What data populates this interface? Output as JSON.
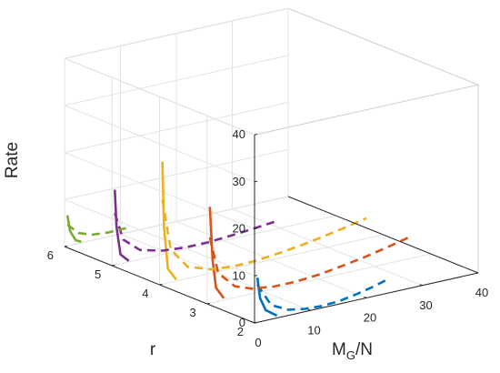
{
  "chart_data": {
    "type": "line",
    "projection": "3d",
    "grid": true,
    "axes": {
      "x": {
        "label": "M",
        "label_sub": "G",
        "label_tail": "/N",
        "ticks": [
          "0",
          "10",
          "20",
          "30",
          "40"
        ],
        "range": [
          0,
          40
        ]
      },
      "y": {
        "label": "r",
        "ticks": [
          "2",
          "3",
          "4",
          "5",
          "6"
        ],
        "range": [
          2,
          6
        ]
      },
      "z": {
        "label": "Rate",
        "ticks": [
          "0",
          "10",
          "20",
          "30",
          "40"
        ],
        "range": [
          0,
          40
        ]
      }
    },
    "series": [
      {
        "color": "#0072BD",
        "r": 2,
        "solid": [
          [
            0.5,
            2.0,
            9.5
          ],
          [
            1,
            2.0,
            5
          ],
          [
            2,
            2.0,
            2.2
          ],
          [
            4,
            2.0,
            0.5
          ]
        ],
        "dashed": [
          [
            0.5,
            2.0,
            8
          ],
          [
            3,
            2.0,
            3
          ],
          [
            6,
            2.0,
            1.2
          ],
          [
            9,
            2.0,
            0.6
          ],
          [
            12,
            2.0,
            0.4
          ],
          [
            15,
            2.0,
            0.6
          ],
          [
            18,
            2.0,
            1.2
          ],
          [
            21,
            2.0,
            2.0
          ],
          [
            24,
            2.0,
            3.0
          ]
        ]
      },
      {
        "color": "#D95319",
        "r": 3,
        "solid": [
          [
            0.5,
            3.0,
            20.5
          ],
          [
            1,
            3.0,
            9
          ],
          [
            1.6,
            3.0,
            3
          ],
          [
            3,
            3.0,
            0.4
          ]
        ],
        "dashed": [
          [
            0.5,
            3.0,
            14
          ],
          [
            2,
            3.0,
            6
          ],
          [
            5,
            3.0,
            2.4
          ],
          [
            8,
            3.0,
            1.1
          ],
          [
            12,
            3.0,
            0.5
          ],
          [
            16,
            3.0,
            0.5
          ],
          [
            20,
            3.0,
            0.9
          ],
          [
            24,
            3.0,
            1.6
          ],
          [
            28,
            3.0,
            2.4
          ],
          [
            32,
            3.0,
            3.4
          ],
          [
            36,
            3.0,
            4.5
          ]
        ]
      },
      {
        "color": "#EDB120",
        "r": 4,
        "solid": [
          [
            0.5,
            4.0,
            26
          ],
          [
            0.8,
            4.0,
            12
          ],
          [
            1.5,
            4.0,
            3
          ],
          [
            3,
            4.0,
            0.3
          ]
        ],
        "dashed": [
          [
            0.5,
            4.0,
            18
          ],
          [
            2,
            4.0,
            7
          ],
          [
            5,
            4.0,
            2.5
          ],
          [
            9,
            4.0,
            0.9
          ],
          [
            13,
            4.0,
            0.4
          ],
          [
            17,
            4.0,
            0.5
          ],
          [
            21,
            4.0,
            1.0
          ],
          [
            25,
            4.0,
            1.6
          ],
          [
            29,
            4.0,
            2.4
          ],
          [
            33,
            4.0,
            3.3
          ],
          [
            37,
            4.0,
            4.3
          ]
        ]
      },
      {
        "color": "#7E2F8E",
        "r": 5,
        "solid": [
          [
            0.5,
            5.0,
            16
          ],
          [
            0.8,
            5.0,
            8
          ],
          [
            1.5,
            5.0,
            2
          ],
          [
            3,
            5.0,
            0.2
          ]
        ],
        "dashed": [
          [
            0.5,
            5.0,
            11
          ],
          [
            2,
            5.0,
            5
          ],
          [
            5,
            5.0,
            2
          ],
          [
            9,
            5.0,
            0.8
          ],
          [
            13,
            5.0,
            0.4
          ],
          [
            17,
            5.0,
            0.4
          ],
          [
            21,
            5.0,
            0.7
          ],
          [
            25,
            5.0,
            1.1
          ],
          [
            29,
            5.0,
            1.6
          ]
        ]
      },
      {
        "color": "#77AC30",
        "r": 6,
        "solid": [
          [
            0.5,
            6.0,
            6.5
          ],
          [
            1,
            6.0,
            3
          ],
          [
            2,
            6.0,
            0.8
          ],
          [
            3,
            6.0,
            0.2
          ]
        ],
        "dashed": [
          [
            0.5,
            6.0,
            4.5
          ],
          [
            2.5,
            6.0,
            2.2
          ],
          [
            5,
            6.0,
            1.2
          ],
          [
            8,
            6.0,
            0.9
          ],
          [
            11,
            6.0,
            1.0
          ]
        ]
      }
    ]
  }
}
